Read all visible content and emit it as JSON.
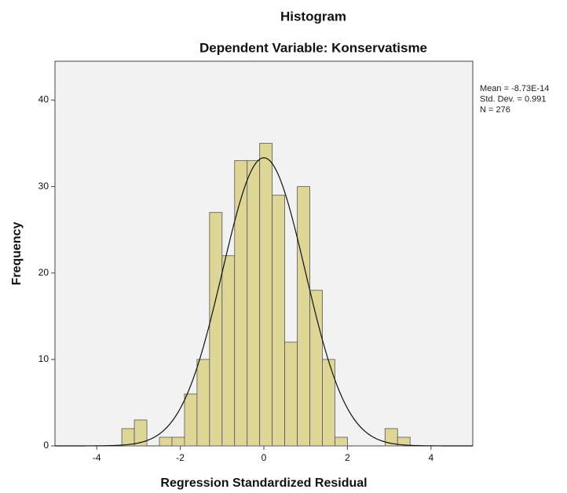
{
  "chart_data": {
    "type": "histogram",
    "title": "Histogram",
    "subtitle": "Dependent Variable: Konservatisme",
    "x_label": "Regression Standardized Residual",
    "y_label": "Frequency",
    "stats": [
      "Mean = -8.73E-14",
      "Std. Dev. = 0.991",
      "N = 276"
    ],
    "mean": -8.73e-14,
    "std": 0.991,
    "n": 276,
    "bins": [
      -3.4,
      -3.1,
      -2.8,
      -2.5,
      -2.2,
      -1.9,
      -1.6,
      -1.3,
      -1.0,
      -0.7,
      -0.4,
      -0.1,
      0.2,
      0.5,
      0.8,
      1.1,
      1.4,
      1.7,
      2.0,
      2.3,
      2.6,
      2.9,
      3.2,
      3.5
    ],
    "values": [
      2,
      3,
      0,
      1,
      1,
      6,
      10,
      27,
      22,
      33,
      33,
      35,
      29,
      12,
      30,
      18,
      10,
      1,
      0,
      0,
      0,
      2,
      1
    ],
    "color": "#ddd697",
    "xlim": [
      -5,
      5
    ],
    "ylim": [
      0,
      44.5
    ],
    "xticks": [
      -4,
      -2,
      0,
      2,
      4
    ],
    "yticks": [
      0,
      10,
      20,
      30,
      40
    ],
    "normal_curve": true
  }
}
